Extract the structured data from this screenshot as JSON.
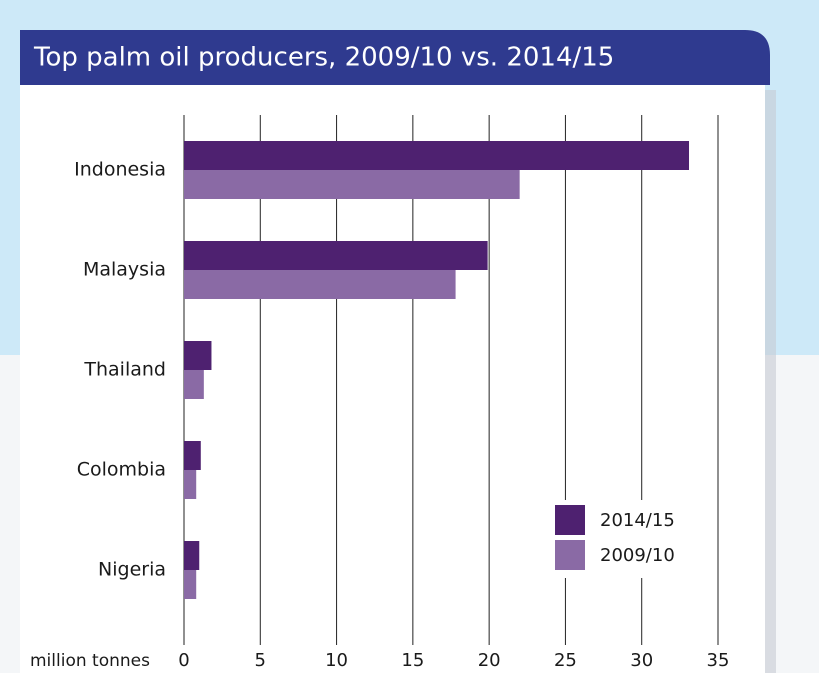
{
  "chart_data": {
    "type": "hbar",
    "title": "Top palm oil producers, 2009/10 vs. 2014/15",
    "x_label": "million tonnes",
    "categories": [
      "Indonesia",
      "Malaysia",
      "Thailand",
      "Colombia",
      "Nigeria"
    ],
    "series": [
      {
        "name": "2014/15",
        "color": "#4e2170",
        "values": [
          33.1,
          19.9,
          1.8,
          1.1,
          1.0
        ]
      },
      {
        "name": "2009/10",
        "color": "#8a6aa5",
        "values": [
          22.0,
          17.8,
          1.3,
          0.8,
          0.8
        ]
      }
    ],
    "xlim": [
      0,
      35
    ],
    "xticks": [
      0,
      5,
      10,
      15,
      20,
      25,
      30,
      35
    ],
    "grid": true,
    "legend": "lower right"
  }
}
